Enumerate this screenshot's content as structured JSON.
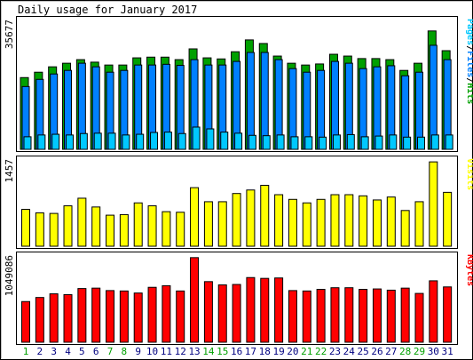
{
  "chart_data": {
    "type": "bar",
    "title": "Daily usage for January 2017",
    "days": [
      "1",
      "2",
      "3",
      "4",
      "5",
      "6",
      "7",
      "8",
      "9",
      "10",
      "11",
      "12",
      "13",
      "14",
      "15",
      "16",
      "17",
      "18",
      "19",
      "20",
      "21",
      "22",
      "23",
      "24",
      "25",
      "26",
      "27",
      "28",
      "29",
      "30",
      "31"
    ],
    "weekend_days": [
      "1",
      "7",
      "8",
      "14",
      "15",
      "21",
      "22",
      "28",
      "29"
    ],
    "panels": [
      {
        "name": "hits-files-pages",
        "ylabel_parts": [
          "Pages",
          "/",
          "Files",
          "/",
          "Hits"
        ],
        "ymax": 35677,
        "ymax_label": "35677",
        "series": [
          {
            "name": "Hits",
            "color": "#00a000",
            "values": [
              20000,
              21500,
              23000,
              24000,
              25000,
              24300,
              23500,
              23500,
              25500,
              25700,
              25700,
              25000,
              28000,
              25500,
              25200,
              27200,
              30500,
              29500,
              26000,
              24000,
              23500,
              23800,
              26500,
              26000,
              25300,
              25300,
              25000,
              22000,
              24000,
              33000,
              27500
            ]
          },
          {
            "name": "Files",
            "color": "#0080ff",
            "values": [
              17500,
              19500,
              21000,
              22000,
              24000,
              23000,
              21500,
              22000,
              23500,
              23500,
              23700,
              23400,
              25000,
              23500,
              23500,
              24500,
              27000,
              27000,
              25000,
              22500,
              21500,
              22000,
              24500,
              24000,
              22500,
              23000,
              23300,
              20500,
              21500,
              29000,
              25000
            ]
          },
          {
            "name": "Pages",
            "color": "#00c8ff",
            "values": [
              3500,
              4000,
              4200,
              4000,
              4400,
              4500,
              4500,
              4000,
              4200,
              4700,
              4800,
              4400,
              6200,
              5700,
              4800,
              4500,
              3900,
              3800,
              4000,
              3500,
              3500,
              3400,
              4000,
              4100,
              3500,
              3700,
              4000,
              3400,
              3400,
              4000,
              4000
            ]
          }
        ]
      },
      {
        "name": "visits",
        "ylabel_parts": [
          "Visits"
        ],
        "ymax": 1457,
        "ymax_label": "1457",
        "series": [
          {
            "name": "Visits",
            "color": "#ffff00",
            "values": [
              630,
              570,
              560,
              690,
              820,
              670,
              530,
              540,
              740,
              690,
              590,
              580,
              1000,
              760,
              760,
              900,
              960,
              1040,
              880,
              800,
              740,
              800,
              880,
              880,
              860,
              790,
              840,
              610,
              760,
              1440,
              920
            ]
          }
        ]
      },
      {
        "name": "kbytes",
        "ylabel_parts": [
          "KBytes"
        ],
        "ymax": 1049086,
        "ymax_label": "1049086",
        "series": [
          {
            "name": "KBytes",
            "color": "#ff0000",
            "values": [
              500000,
              550000,
              595000,
              585000,
              660000,
              665000,
              635000,
              630000,
              605000,
              675000,
              695000,
              630000,
              1040000,
              745000,
              705000,
              710000,
              795000,
              785000,
              790000,
              635000,
              630000,
              650000,
              670000,
              670000,
              650000,
              655000,
              640000,
              665000,
              600000,
              755000,
              680000
            ]
          }
        ]
      }
    ],
    "colors": {
      "weekday_label": "#000080",
      "weekend_label": "#00a000",
      "hits_label": "#00a000",
      "files_label": "#0080ff",
      "pages_label": "#00c8ff",
      "sep_label": "#000000"
    }
  }
}
